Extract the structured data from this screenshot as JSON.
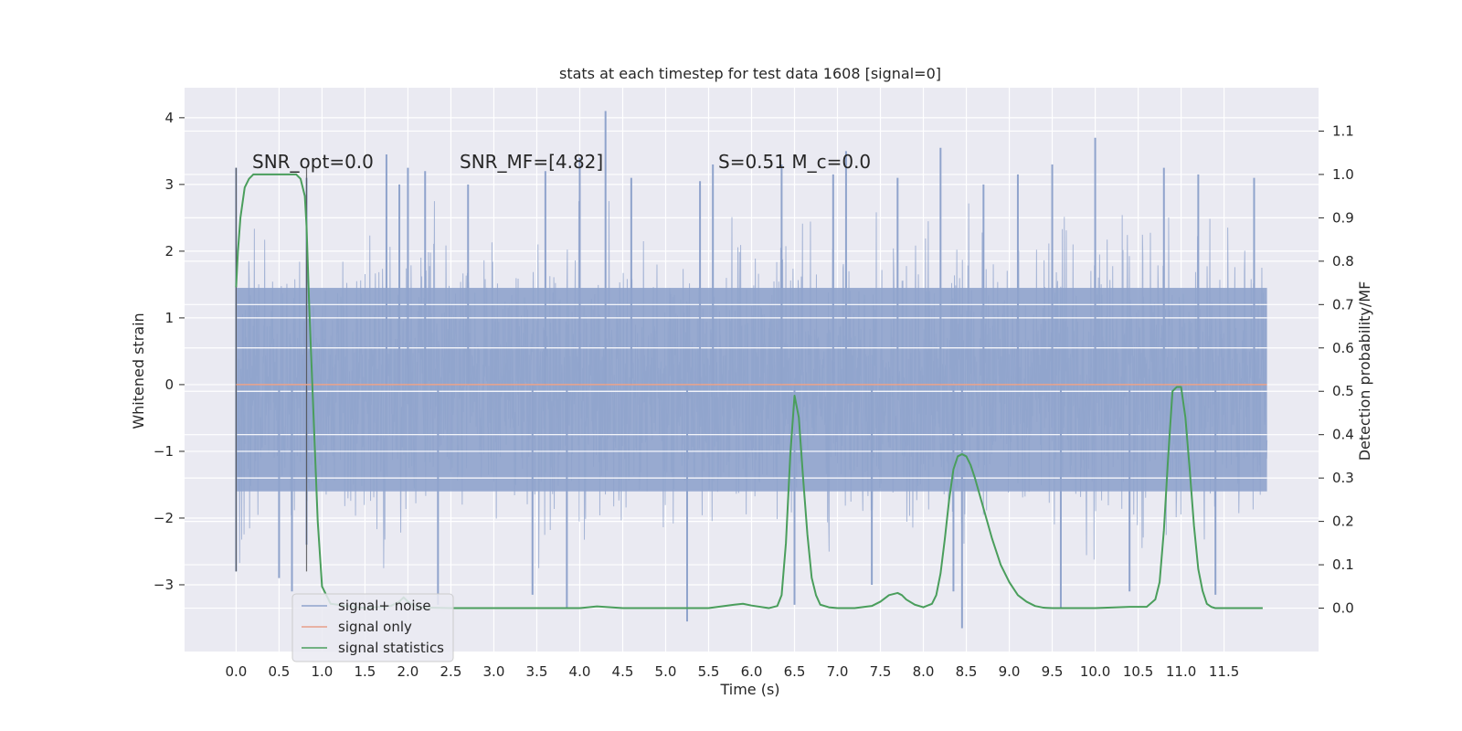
{
  "chart_data": {
    "type": "line",
    "title": "stats at each timestep for test data 1608 [signal=0]",
    "xlabel": "Time (s)",
    "ylabel_left": "Whitened strain",
    "ylabel_right": "Detection probability/MF",
    "xlim": [
      -0.6,
      12.6
    ],
    "ylim_left": [
      -4.0,
      4.45
    ],
    "ylim_right": [
      -0.1,
      1.2
    ],
    "x_ticks": [
      "0.0",
      "0.5",
      "1.0",
      "1.5",
      "2.0",
      "2.5",
      "3.0",
      "3.5",
      "4.0",
      "4.5",
      "5.0",
      "5.5",
      "6.0",
      "6.5",
      "7.0",
      "7.5",
      "8.0",
      "8.5",
      "9.0",
      "9.5",
      "10.0",
      "10.5",
      "11.0",
      "11.5"
    ],
    "y_ticks_left": [
      "−3",
      "−2",
      "−1",
      "0",
      "1",
      "2",
      "3",
      "4"
    ],
    "y_ticks_right": [
      "0.0",
      "0.1",
      "0.2",
      "0.3",
      "0.4",
      "0.5",
      "0.6",
      "0.7",
      "0.8",
      "0.9",
      "1.0",
      "1.1"
    ],
    "grid": true,
    "legend_position": "lower-left",
    "annotations": [
      {
        "text": "SNR_opt=0.0"
      },
      {
        "text": "SNR_MF=[4.82]"
      },
      {
        "text": "S=0.51   M_c=0.0"
      }
    ],
    "series": [
      {
        "name": "signal+ noise",
        "color": "#8fa3cc",
        "axis": "left",
        "x_range": [
          0.0,
          12.0
        ],
        "core_band": [
          -1.6,
          1.45
        ],
        "noise_sd": 0.9
      },
      {
        "name": "signal only",
        "color": "#e8a089",
        "axis": "left",
        "x": [
          0.0,
          12.0
        ],
        "y": [
          0.0,
          0.0
        ]
      },
      {
        "name": "signal statistics",
        "color": "#4a9e5c",
        "axis": "right",
        "x": [
          0.0,
          0.02,
          0.05,
          0.1,
          0.15,
          0.2,
          0.3,
          0.4,
          0.5,
          0.6,
          0.7,
          0.75,
          0.8,
          0.82,
          0.85,
          0.9,
          0.95,
          1.0,
          1.1,
          1.5,
          1.8,
          1.9,
          1.95,
          2.0,
          2.1,
          2.5,
          3.0,
          3.5,
          4.0,
          4.2,
          4.5,
          5.0,
          5.5,
          5.8,
          5.9,
          6.0,
          6.2,
          6.3,
          6.35,
          6.4,
          6.45,
          6.5,
          6.55,
          6.6,
          6.65,
          6.7,
          6.75,
          6.8,
          6.9,
          7.0,
          7.2,
          7.4,
          7.5,
          7.6,
          7.7,
          7.75,
          7.8,
          7.9,
          8.0,
          8.1,
          8.15,
          8.2,
          8.25,
          8.3,
          8.35,
          8.4,
          8.45,
          8.5,
          8.55,
          8.6,
          8.7,
          8.8,
          8.9,
          9.0,
          9.1,
          9.2,
          9.3,
          9.4,
          9.5,
          10.0,
          10.4,
          10.6,
          10.7,
          10.75,
          10.8,
          10.85,
          10.9,
          10.95,
          11.0,
          11.05,
          11.1,
          11.15,
          11.2,
          11.25,
          11.3,
          11.35,
          11.4,
          11.5,
          11.65,
          11.8,
          11.95
        ],
        "y": [
          0.74,
          0.82,
          0.9,
          0.97,
          0.99,
          1.0,
          1.0,
          1.0,
          1.0,
          1.0,
          1.0,
          0.99,
          0.95,
          0.88,
          0.7,
          0.45,
          0.2,
          0.05,
          0.01,
          0.0,
          0.005,
          0.015,
          0.025,
          0.015,
          0.002,
          0.0,
          0.0,
          0.0,
          0.0,
          0.004,
          0.0,
          0.0,
          0.0,
          0.008,
          0.01,
          0.006,
          0.0,
          0.005,
          0.03,
          0.15,
          0.35,
          0.49,
          0.44,
          0.3,
          0.17,
          0.07,
          0.03,
          0.008,
          0.002,
          0.0,
          0.0,
          0.005,
          0.015,
          0.03,
          0.035,
          0.03,
          0.02,
          0.008,
          0.002,
          0.01,
          0.03,
          0.08,
          0.16,
          0.25,
          0.32,
          0.35,
          0.355,
          0.35,
          0.33,
          0.3,
          0.23,
          0.16,
          0.1,
          0.06,
          0.03,
          0.015,
          0.005,
          0.001,
          0.0,
          0.0,
          0.003,
          0.003,
          0.02,
          0.06,
          0.18,
          0.35,
          0.5,
          0.51,
          0.51,
          0.44,
          0.32,
          0.19,
          0.09,
          0.04,
          0.01,
          0.003,
          0.0,
          0.0,
          0.0,
          0.0,
          0.0
        ]
      }
    ],
    "spikes": [
      {
        "x": 0.0,
        "y": 3.25
      },
      {
        "x": 0.0,
        "y": -2.8
      },
      {
        "x": 0.82,
        "y": 3.1
      },
      {
        "x": 0.82,
        "y": -2.4
      },
      {
        "x": 0.5,
        "y": -2.9
      },
      {
        "x": 0.65,
        "y": -3.1
      },
      {
        "x": 1.75,
        "y": 3.45
      },
      {
        "x": 1.9,
        "y": 3.0
      },
      {
        "x": 2.0,
        "y": 3.25
      },
      {
        "x": 2.2,
        "y": 3.2
      },
      {
        "x": 2.35,
        "y": -3.3
      },
      {
        "x": 2.7,
        "y": 3.0
      },
      {
        "x": 3.45,
        "y": -3.15
      },
      {
        "x": 3.6,
        "y": 3.2
      },
      {
        "x": 3.85,
        "y": -3.35
      },
      {
        "x": 4.0,
        "y": 3.4
      },
      {
        "x": 4.3,
        "y": 4.1
      },
      {
        "x": 4.6,
        "y": 3.1
      },
      {
        "x": 5.25,
        "y": -3.55
      },
      {
        "x": 5.4,
        "y": 3.05
      },
      {
        "x": 5.55,
        "y": 3.3
      },
      {
        "x": 6.35,
        "y": 3.3
      },
      {
        "x": 6.5,
        "y": -3.3
      },
      {
        "x": 6.95,
        "y": 3.15
      },
      {
        "x": 7.1,
        "y": 3.5
      },
      {
        "x": 7.4,
        "y": -3.0
      },
      {
        "x": 7.7,
        "y": 3.1
      },
      {
        "x": 8.2,
        "y": 3.55
      },
      {
        "x": 8.35,
        "y": -3.1
      },
      {
        "x": 8.45,
        "y": -3.65
      },
      {
        "x": 8.7,
        "y": 3.0
      },
      {
        "x": 9.1,
        "y": 3.15
      },
      {
        "x": 9.5,
        "y": 3.3
      },
      {
        "x": 9.6,
        "y": -3.35
      },
      {
        "x": 10.0,
        "y": 3.7
      },
      {
        "x": 10.4,
        "y": -3.1
      },
      {
        "x": 10.8,
        "y": 3.25
      },
      {
        "x": 11.2,
        "y": 3.15
      },
      {
        "x": 11.4,
        "y": -3.15
      },
      {
        "x": 11.85,
        "y": 3.1
      }
    ]
  }
}
